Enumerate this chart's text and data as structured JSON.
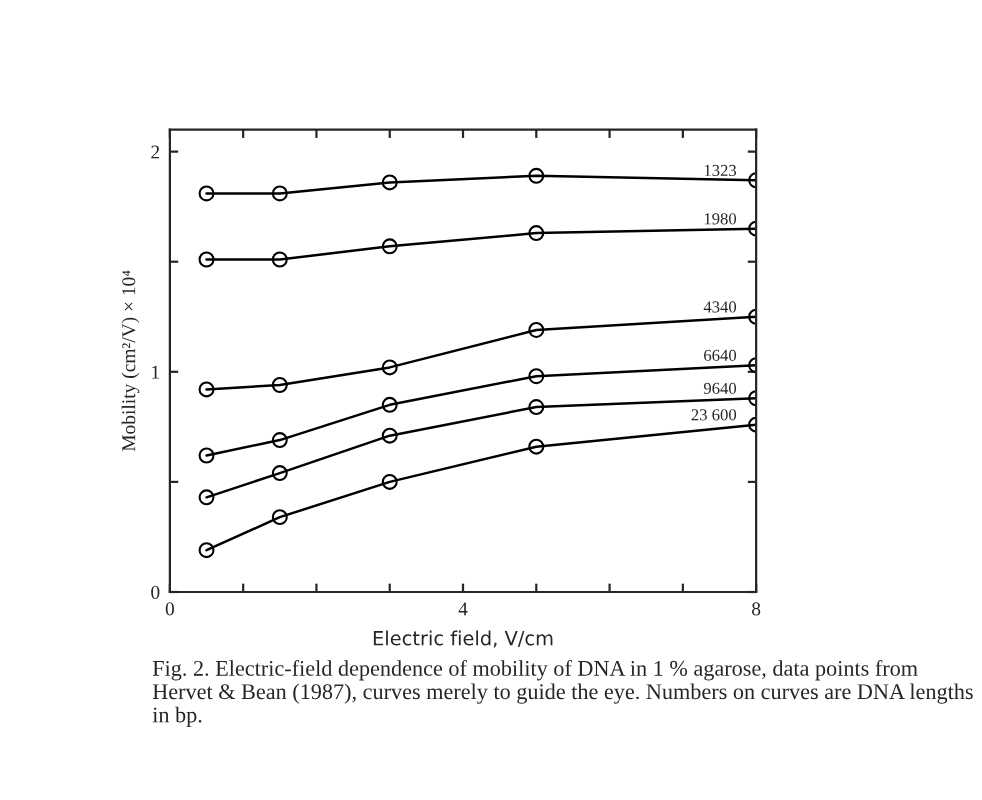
{
  "chart_data": {
    "type": "line",
    "xlabel": "Electric field, V/cm",
    "ylabel": "Mobility (cm²/V) × 10⁴",
    "x": [
      0.5,
      1.5,
      3,
      5,
      8
    ],
    "series": [
      {
        "name": "1323",
        "color": "#000000",
        "values": [
          1.81,
          1.81,
          1.86,
          1.89,
          1.87
        ]
      },
      {
        "name": "1980",
        "color": "#000000",
        "values": [
          1.51,
          1.51,
          1.57,
          1.63,
          1.65
        ]
      },
      {
        "name": "4340",
        "color": "#000000",
        "values": [
          0.92,
          0.94,
          1.02,
          1.19,
          1.25
        ]
      },
      {
        "name": "6640",
        "color": "#000000",
        "values": [
          0.62,
          0.69,
          0.85,
          0.98,
          1.03
        ]
      },
      {
        "name": "9640",
        "color": "#000000",
        "values": [
          0.43,
          0.54,
          0.71,
          0.84,
          0.88
        ]
      },
      {
        "name": "23 600",
        "color": "#000000",
        "values": [
          0.19,
          0.34,
          0.5,
          0.66,
          0.76
        ]
      }
    ],
    "xlim": [
      0,
      8
    ],
    "xticks": [
      0,
      {
        "value": 1,
        "label": null
      },
      {
        "value": 2,
        "label": null
      },
      {
        "value": 3,
        "label": null
      },
      4,
      {
        "value": 5,
        "label": null
      },
      {
        "value": 6,
        "label": null
      },
      {
        "value": 7,
        "label": null
      },
      8
    ],
    "ylim": [
      0,
      2.1
    ],
    "yticks": [
      0,
      {
        "value": 0.5,
        "label": null
      },
      1,
      {
        "value": 1.5,
        "label": null
      },
      2
    ],
    "marker": "circle",
    "line_style": "solid",
    "grid": false,
    "legend": false,
    "annotations": [
      "Fig. 2. Electric-field dependence of mobility of DNA in 1 % agarose, data points from Hervet & Bean (1987), curves merely to guide the eye. Numbers on curves are DNA lengths in bp."
    ]
  }
}
